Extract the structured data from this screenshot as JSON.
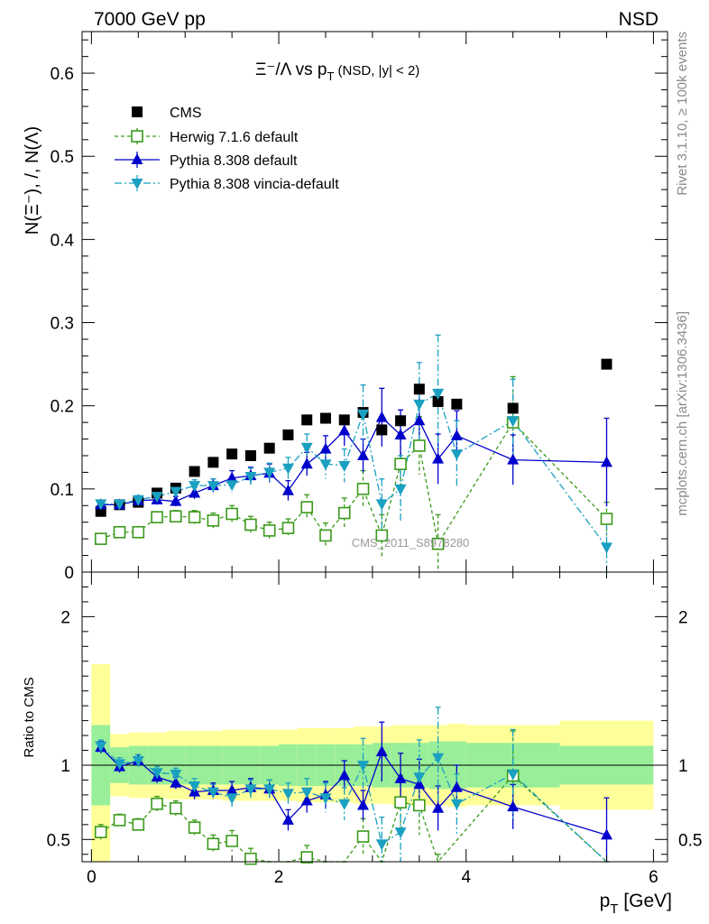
{
  "header": {
    "left": "7000 GeV pp",
    "right": "NSD"
  },
  "plot_title": {
    "main": "Ξ⁻/Λ  vs p",
    "sub": "T",
    "cond": " (NSD, |y| < 2)"
  },
  "axes": {
    "ylabel_top": "N(Ξ⁻), /, N(Λ)",
    "ylabel_ratio": "Ratio to CMS",
    "xlabel_main": "p",
    "xlabel_sub": "T",
    "xlabel_unit": " [GeV]"
  },
  "side_text": {
    "rivet": "Rivet 3.1.10, ≥ 100k events",
    "mcplots": "mcplots.cern.ch [arXiv:1306.3436]"
  },
  "watermark": "CMS_2011_S8978280",
  "colors": {
    "cms": "#000000",
    "herwig": "#3a9a1a",
    "pythia": "#0000cc",
    "vincia": "#1aa0c0",
    "band_yellow": "#ffff99",
    "band_green": "#99ee99"
  },
  "chart_data": {
    "type": "scatter",
    "xlim": [
      -0.1,
      6.15
    ],
    "ylim_main": [
      0,
      0.65
    ],
    "ylim_ratio": [
      0.35,
      2.3
    ],
    "x_ticks": [
      0,
      2,
      4,
      6
    ],
    "y_ticks_main": [
      0,
      0.1,
      0.2,
      0.3,
      0.4,
      0.5,
      0.6
    ],
    "y_ticks_ratio": [
      0.5,
      1,
      2
    ],
    "legend_position": "top-left",
    "series": [
      {
        "name": "CMS",
        "x": [
          0.1,
          0.3,
          0.5,
          0.7,
          0.9,
          1.1,
          1.3,
          1.5,
          1.7,
          1.9,
          2.1,
          2.3,
          2.5,
          2.7,
          2.9,
          3.1,
          3.3,
          3.5,
          3.7,
          3.9,
          4.5,
          5.5
        ],
        "y": [
          0.073,
          0.081,
          0.084,
          0.095,
          0.101,
          0.121,
          0.132,
          0.142,
          0.14,
          0.149,
          0.165,
          0.183,
          0.185,
          0.183,
          0.192,
          0.171,
          0.182,
          0.22,
          0.205,
          0.202,
          0.197,
          0.25
        ]
      },
      {
        "name": "Herwig 7.1.6 default",
        "x": [
          0.1,
          0.3,
          0.5,
          0.7,
          0.9,
          1.1,
          1.3,
          1.5,
          1.7,
          1.9,
          2.1,
          2.3,
          2.5,
          2.7,
          2.9,
          3.1,
          3.3,
          3.5,
          3.7,
          4.5,
          5.5
        ],
        "y": [
          0.04,
          0.048,
          0.048,
          0.066,
          0.067,
          0.066,
          0.062,
          0.07,
          0.057,
          0.05,
          0.053,
          0.078,
          0.044,
          0.071,
          0.1,
          0.044,
          0.13,
          0.152,
          0.034,
          0.18,
          0.064
        ],
        "err": [
          0.003,
          0.004,
          0.004,
          0.006,
          0.007,
          0.008,
          0.009,
          0.01,
          0.01,
          0.01,
          0.011,
          0.015,
          0.015,
          0.018,
          0.022,
          0.025,
          0.03,
          0.035,
          0.035,
          0.055,
          0.02
        ]
      },
      {
        "name": "Pythia 8.308 default",
        "x": [
          0.1,
          0.3,
          0.5,
          0.7,
          0.9,
          1.1,
          1.3,
          1.5,
          1.7,
          1.9,
          2.1,
          2.3,
          2.5,
          2.7,
          2.9,
          3.1,
          3.3,
          3.5,
          3.7,
          3.9,
          4.5,
          5.5
        ],
        "y": [
          0.081,
          0.081,
          0.086,
          0.087,
          0.085,
          0.095,
          0.104,
          0.113,
          0.116,
          0.119,
          0.098,
          0.13,
          0.148,
          0.17,
          0.14,
          0.186,
          0.165,
          0.182,
          0.136,
          0.164,
          0.135,
          0.132
        ],
        "err": [
          0.004,
          0.004,
          0.005,
          0.006,
          0.006,
          0.007,
          0.008,
          0.009,
          0.01,
          0.011,
          0.012,
          0.014,
          0.016,
          0.018,
          0.02,
          0.035,
          0.03,
          0.035,
          0.03,
          0.03,
          0.03,
          0.053
        ]
      },
      {
        "name": "Pythia 8.308 vincia-default",
        "x": [
          0.1,
          0.3,
          0.5,
          0.7,
          0.9,
          1.1,
          1.3,
          1.5,
          1.7,
          1.9,
          2.1,
          2.3,
          2.5,
          2.7,
          2.9,
          3.1,
          3.3,
          3.5,
          3.7,
          3.9,
          4.5,
          5.5
        ],
        "y": [
          0.082,
          0.082,
          0.087,
          0.091,
          0.097,
          0.104,
          0.104,
          0.105,
          0.115,
          0.12,
          0.125,
          0.15,
          0.13,
          0.128,
          0.19,
          0.082,
          0.1,
          0.202,
          0.215,
          0.142,
          0.182,
          0.03
        ],
        "err": [
          0.004,
          0.004,
          0.005,
          0.006,
          0.006,
          0.007,
          0.008,
          0.009,
          0.01,
          0.011,
          0.013,
          0.016,
          0.018,
          0.02,
          0.035,
          0.03,
          0.04,
          0.05,
          0.07,
          0.04,
          0.05,
          0.03
        ]
      }
    ],
    "ratio": {
      "herwig": [
        0.55,
        0.63,
        0.6,
        0.74,
        0.71,
        0.58,
        0.47,
        0.49,
        0.37,
        0.28,
        0.24,
        0.38,
        0.2,
        0.2,
        0.52,
        0.2,
        0.75,
        0.73,
        0.2,
        0.93,
        0.2
      ],
      "herwig_err": [
        0.05,
        0.04,
        0.04,
        0.05,
        0.05,
        0.05,
        0.06,
        0.07,
        0.07,
        0.07,
        0.07,
        0.08,
        0.08,
        0.1,
        0.12,
        0.15,
        0.18,
        0.2,
        0.2,
        0.3,
        0.1
      ],
      "pythia": [
        1.12,
        0.99,
        1.03,
        0.92,
        0.88,
        0.82,
        0.83,
        0.83,
        0.85,
        0.84,
        0.63,
        0.76,
        0.8,
        0.93,
        0.73,
        1.09,
        0.91,
        0.87,
        0.71,
        0.85,
        0.72,
        0.53
      ],
      "pythia_err": [
        0.04,
        0.04,
        0.04,
        0.04,
        0.04,
        0.05,
        0.05,
        0.06,
        0.06,
        0.06,
        0.07,
        0.08,
        0.09,
        0.1,
        0.1,
        0.2,
        0.17,
        0.17,
        0.15,
        0.15,
        0.15,
        0.25
      ],
      "vincia": [
        1.13,
        1.01,
        1.03,
        0.95,
        0.94,
        0.86,
        0.82,
        0.78,
        0.84,
        0.84,
        0.81,
        0.82,
        0.78,
        0.74,
        1.0,
        0.47,
        0.55,
        0.92,
        1.05,
        0.74,
        0.94,
        0.12
      ],
      "vincia_err": [
        0.04,
        0.04,
        0.04,
        0.04,
        0.04,
        0.05,
        0.05,
        0.06,
        0.06,
        0.06,
        0.07,
        0.09,
        0.1,
        0.11,
        0.18,
        0.18,
        0.22,
        0.25,
        0.34,
        0.2,
        0.3,
        0.12
      ],
      "band_bins": [
        [
          0,
          0.2
        ],
        [
          0.2,
          0.4
        ],
        [
          0.4,
          0.6
        ],
        [
          0.6,
          0.8
        ],
        [
          0.8,
          1.0
        ],
        [
          1.0,
          1.2
        ],
        [
          1.2,
          1.4
        ],
        [
          1.4,
          1.6
        ],
        [
          1.6,
          1.8
        ],
        [
          1.8,
          2.0
        ],
        [
          2.0,
          2.2
        ],
        [
          2.2,
          2.4
        ],
        [
          2.4,
          2.6
        ],
        [
          2.6,
          2.8
        ],
        [
          2.8,
          3.0
        ],
        [
          3.0,
          3.2
        ],
        [
          3.2,
          3.4
        ],
        [
          3.4,
          3.6
        ],
        [
          3.6,
          3.8
        ],
        [
          3.8,
          4.0
        ],
        [
          4.0,
          5.0
        ],
        [
          5.0,
          6.0
        ]
      ],
      "band_green": [
        0.27,
        0.12,
        0.13,
        0.13,
        0.13,
        0.13,
        0.13,
        0.13,
        0.13,
        0.13,
        0.14,
        0.14,
        0.14,
        0.14,
        0.14,
        0.15,
        0.15,
        0.15,
        0.16,
        0.16,
        0.15,
        0.13
      ],
      "band_yellow": [
        0.68,
        0.21,
        0.22,
        0.22,
        0.23,
        0.23,
        0.23,
        0.24,
        0.24,
        0.24,
        0.24,
        0.25,
        0.25,
        0.25,
        0.26,
        0.26,
        0.27,
        0.27,
        0.27,
        0.28,
        0.27,
        0.3
      ]
    }
  }
}
